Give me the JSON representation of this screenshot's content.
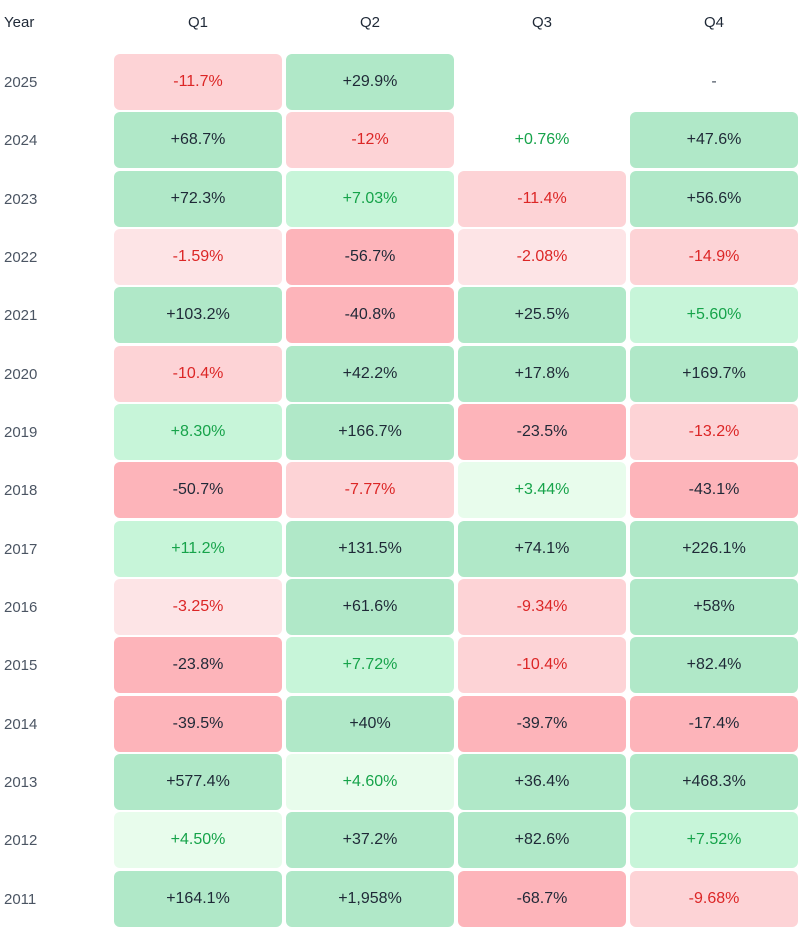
{
  "headers": [
    "Year",
    "Q1",
    "Q2",
    "Q3",
    "Q4"
  ],
  "rows": [
    {
      "year": "2025",
      "cells": [
        {
          "v": "-11.7%",
          "t": "neg2"
        },
        {
          "v": "+29.9%",
          "t": "pos3"
        },
        {
          "v": "",
          "t": "none"
        },
        {
          "v": "-",
          "t": "none"
        }
      ]
    },
    {
      "year": "2024",
      "cells": [
        {
          "v": "+68.7%",
          "t": "pos3"
        },
        {
          "v": "-12%",
          "t": "neg2"
        },
        {
          "v": "+0.76%",
          "t": "pos0"
        },
        {
          "v": "+47.6%",
          "t": "pos3"
        }
      ]
    },
    {
      "year": "2023",
      "cells": [
        {
          "v": "+72.3%",
          "t": "pos3"
        },
        {
          "v": "+7.03%",
          "t": "pos2"
        },
        {
          "v": "-11.4%",
          "t": "neg2"
        },
        {
          "v": "+56.6%",
          "t": "pos3"
        }
      ]
    },
    {
      "year": "2022",
      "cells": [
        {
          "v": "-1.59%",
          "t": "neg1"
        },
        {
          "v": "-56.7%",
          "t": "neg3"
        },
        {
          "v": "-2.08%",
          "t": "neg1"
        },
        {
          "v": "-14.9%",
          "t": "neg2"
        }
      ]
    },
    {
      "year": "2021",
      "cells": [
        {
          "v": "+103.2%",
          "t": "pos3"
        },
        {
          "v": "-40.8%",
          "t": "neg3"
        },
        {
          "v": "+25.5%",
          "t": "pos3"
        },
        {
          "v": "+5.60%",
          "t": "pos2"
        }
      ]
    },
    {
      "year": "2020",
      "cells": [
        {
          "v": "-10.4%",
          "t": "neg2"
        },
        {
          "v": "+42.2%",
          "t": "pos3"
        },
        {
          "v": "+17.8%",
          "t": "pos3"
        },
        {
          "v": "+169.7%",
          "t": "pos3"
        }
      ]
    },
    {
      "year": "2019",
      "cells": [
        {
          "v": "+8.30%",
          "t": "pos2"
        },
        {
          "v": "+166.7%",
          "t": "pos3"
        },
        {
          "v": "-23.5%",
          "t": "neg3"
        },
        {
          "v": "-13.2%",
          "t": "neg2"
        }
      ]
    },
    {
      "year": "2018",
      "cells": [
        {
          "v": "-50.7%",
          "t": "neg3"
        },
        {
          "v": "-7.77%",
          "t": "neg2"
        },
        {
          "v": "+3.44%",
          "t": "pos1"
        },
        {
          "v": "-43.1%",
          "t": "neg3"
        }
      ]
    },
    {
      "year": "2017",
      "cells": [
        {
          "v": "+11.2%",
          "t": "pos2"
        },
        {
          "v": "+131.5%",
          "t": "pos3"
        },
        {
          "v": "+74.1%",
          "t": "pos3"
        },
        {
          "v": "+226.1%",
          "t": "pos3"
        }
      ]
    },
    {
      "year": "2016",
      "cells": [
        {
          "v": "-3.25%",
          "t": "neg1"
        },
        {
          "v": "+61.6%",
          "t": "pos3"
        },
        {
          "v": "-9.34%",
          "t": "neg2"
        },
        {
          "v": "+58%",
          "t": "pos3"
        }
      ]
    },
    {
      "year": "2015",
      "cells": [
        {
          "v": "-23.8%",
          "t": "neg3"
        },
        {
          "v": "+7.72%",
          "t": "pos2"
        },
        {
          "v": "-10.4%",
          "t": "neg2"
        },
        {
          "v": "+82.4%",
          "t": "pos3"
        }
      ]
    },
    {
      "year": "2014",
      "cells": [
        {
          "v": "-39.5%",
          "t": "neg3"
        },
        {
          "v": "+40%",
          "t": "pos3"
        },
        {
          "v": "-39.7%",
          "t": "neg3"
        },
        {
          "v": "-17.4%",
          "t": "neg3"
        }
      ]
    },
    {
      "year": "2013",
      "cells": [
        {
          "v": "+577.4%",
          "t": "pos3"
        },
        {
          "v": "+4.60%",
          "t": "pos1"
        },
        {
          "v": "+36.4%",
          "t": "pos3"
        },
        {
          "v": "+468.3%",
          "t": "pos3"
        }
      ]
    },
    {
      "year": "2012",
      "cells": [
        {
          "v": "+4.50%",
          "t": "pos1"
        },
        {
          "v": "+37.2%",
          "t": "pos3"
        },
        {
          "v": "+82.6%",
          "t": "pos3"
        },
        {
          "v": "+7.52%",
          "t": "pos2"
        }
      ]
    },
    {
      "year": "2011",
      "cells": [
        {
          "v": "+164.1%",
          "t": "pos3"
        },
        {
          "v": "+1,958%",
          "t": "pos3"
        },
        {
          "v": "-68.7%",
          "t": "neg3"
        },
        {
          "v": "-9.68%",
          "t": "neg2"
        }
      ]
    }
  ],
  "colors": {
    "pos3": "#b0e8c8",
    "pos2": "#c7f5d9",
    "pos1": "#e8fcec",
    "pos0": "#ffffff",
    "neg3": "#fdb4ba",
    "neg2": "#fdd3d6",
    "neg1": "#fde4e6",
    "none": "#ffffff"
  }
}
